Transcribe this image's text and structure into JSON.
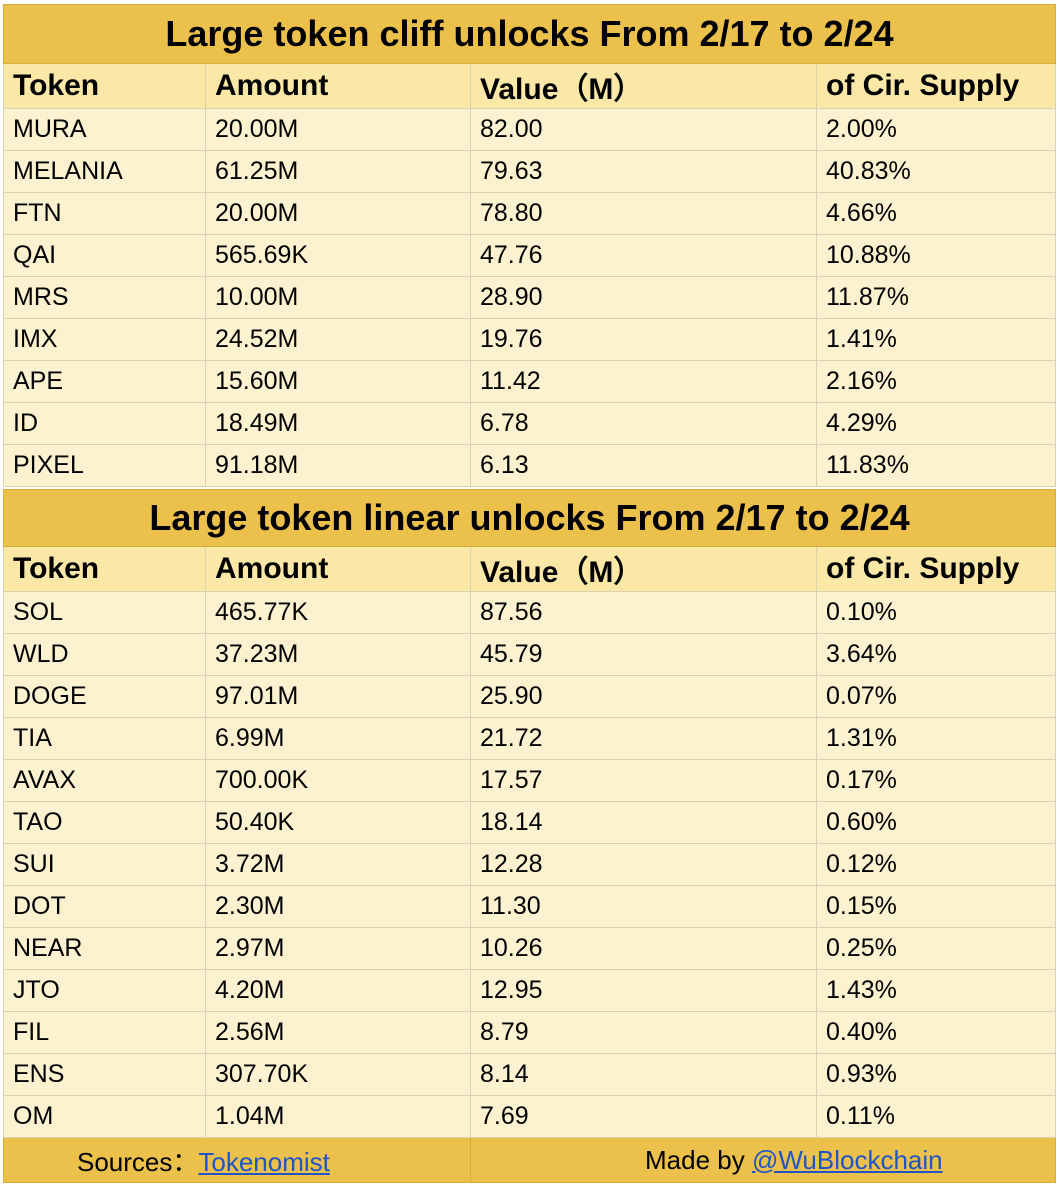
{
  "cliff": {
    "title": "Large token cliff unlocks From 2/17 to 2/24",
    "headers": [
      "Token",
      "Amount",
      "Value（M）",
      "of Cir. Supply"
    ],
    "rows": [
      [
        "MURA",
        "20.00M",
        "82.00",
        "2.00%"
      ],
      [
        "MELANIA",
        "61.25M",
        "79.63",
        "40.83%"
      ],
      [
        "FTN",
        "20.00M",
        "78.80",
        "4.66%"
      ],
      [
        "QAI",
        "565.69K",
        "47.76",
        "10.88%"
      ],
      [
        "MRS",
        "10.00M",
        "28.90",
        "11.87%"
      ],
      [
        "IMX",
        "24.52M",
        "19.76",
        "1.41%"
      ],
      [
        "APE",
        "15.60M",
        "11.42",
        "2.16%"
      ],
      [
        "ID",
        "18.49M",
        "6.78",
        "4.29%"
      ],
      [
        "PIXEL",
        "91.18M",
        "6.13",
        "11.83%"
      ]
    ]
  },
  "linear": {
    "title": "Large token linear unlocks From 2/17 to 2/24",
    "headers": [
      "Token",
      "Amount",
      "Value（M）",
      "of Cir. Supply"
    ],
    "rows": [
      [
        "SOL",
        "465.77K",
        "87.56",
        "0.10%"
      ],
      [
        "WLD",
        "37.23M",
        "45.79",
        "3.64%"
      ],
      [
        "DOGE",
        "97.01M",
        "25.90",
        "0.07%"
      ],
      [
        "TIA",
        "6.99M",
        "21.72",
        "1.31%"
      ],
      [
        "AVAX",
        "700.00K",
        "17.57",
        "0.17%"
      ],
      [
        "TAO",
        "50.40K",
        "18.14",
        "0.60%"
      ],
      [
        "SUI",
        "3.72M",
        "12.28",
        "0.12%"
      ],
      [
        "DOT",
        "2.30M",
        "11.30",
        "0.15%"
      ],
      [
        "NEAR",
        "2.97M",
        "10.26",
        "0.25%"
      ],
      [
        "JTO",
        "4.20M",
        "12.95",
        "1.43%"
      ],
      [
        "FIL",
        "2.56M",
        "8.79",
        "0.40%"
      ],
      [
        "ENS",
        "307.70K",
        "8.14",
        "0.93%"
      ],
      [
        "OM",
        "1.04M",
        "7.69",
        "0.11%"
      ]
    ]
  },
  "footer": {
    "sources_label": "Sources：",
    "sources_link": "Tokenomist",
    "made_by_label": "Made by ",
    "made_by_link": "@WuBlockchain"
  },
  "colors": {
    "title_bg": "#ebc14c",
    "header_bg": "#fbe8a6",
    "row_bg": "#fdf2cf",
    "link": "#1f55c7"
  }
}
